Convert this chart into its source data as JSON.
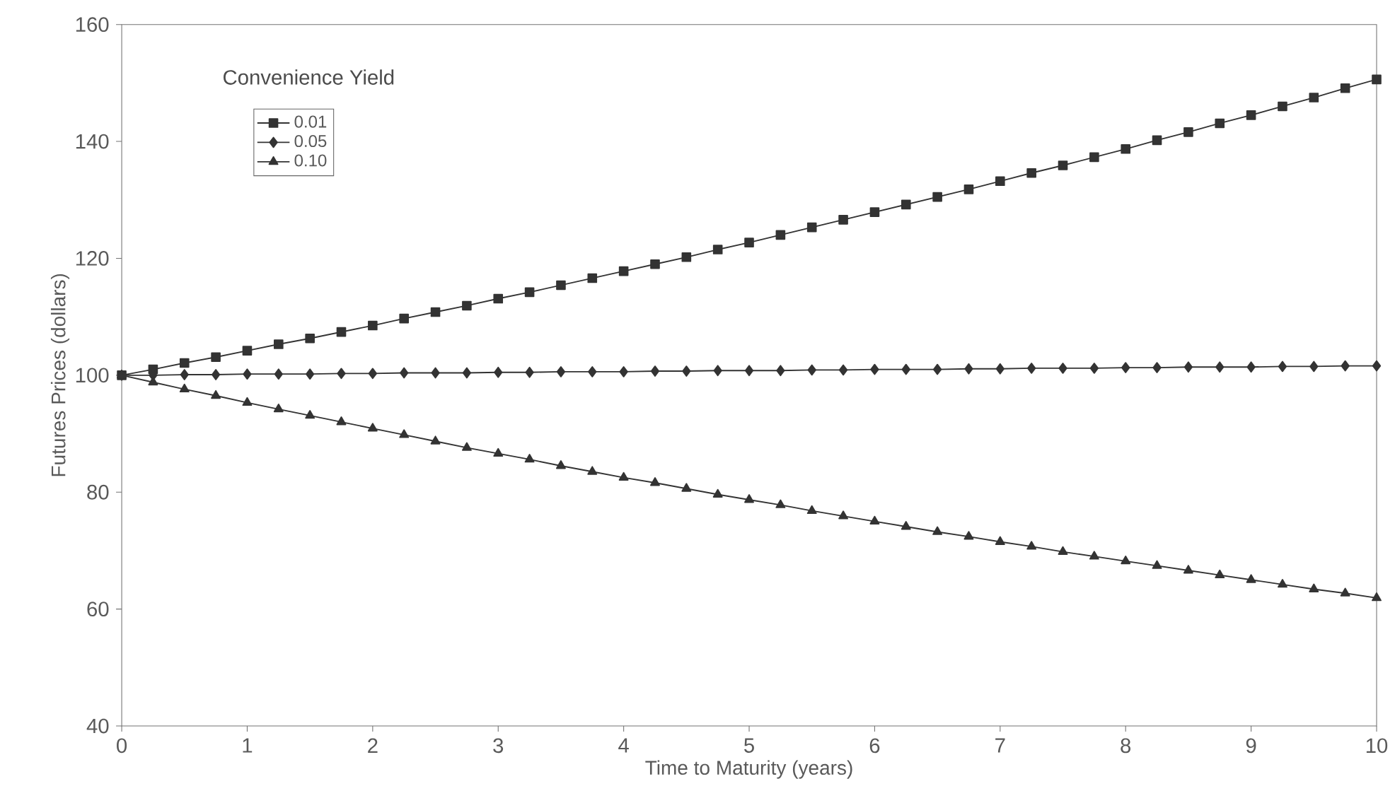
{
  "chart_data": {
    "type": "line",
    "xlabel": "Time to Maturity (years)",
    "ylabel": "Futures Prices (dollars)",
    "legend_title": "Convenience Yield",
    "x": [
      0,
      0.25,
      0.5,
      0.75,
      1,
      1.25,
      1.5,
      1.75,
      2,
      2.25,
      2.5,
      2.75,
      3,
      3.25,
      3.5,
      3.75,
      4,
      4.25,
      4.5,
      4.75,
      5,
      5.25,
      5.5,
      5.75,
      6,
      6.25,
      6.5,
      6.75,
      7,
      7.25,
      7.5,
      7.75,
      8,
      8.25,
      8.5,
      8.75,
      9,
      9.25,
      9.5,
      9.75,
      10
    ],
    "series": [
      {
        "name": "0.01",
        "color": "#333333",
        "marker": "square",
        "values": [
          100,
          101.0,
          102.1,
          103.1,
          104.2,
          105.3,
          106.3,
          107.4,
          108.5,
          109.7,
          110.8,
          111.9,
          113.1,
          114.2,
          115.4,
          116.6,
          117.8,
          119.0,
          120.2,
          121.5,
          122.7,
          124.0,
          125.3,
          126.6,
          127.9,
          129.2,
          130.5,
          131.8,
          133.2,
          134.6,
          135.9,
          137.3,
          138.7,
          140.2,
          141.6,
          143.1,
          144.5,
          146.0,
          147.5,
          149.1,
          150.6
        ]
      },
      {
        "name": "0.05",
        "color": "#333333",
        "marker": "diamond",
        "values": [
          100.0,
          100.0,
          100.1,
          100.1,
          100.2,
          100.2,
          100.2,
          100.3,
          100.3,
          100.4,
          100.4,
          100.4,
          100.5,
          100.5,
          100.6,
          100.6,
          100.6,
          100.7,
          100.7,
          100.8,
          100.8,
          100.8,
          100.9,
          100.9,
          101.0,
          101.0,
          101.0,
          101.1,
          101.1,
          101.2,
          101.2,
          101.2,
          101.3,
          101.3,
          101.4,
          101.4,
          101.4,
          101.5,
          101.5,
          101.6,
          101.6
        ]
      },
      {
        "name": "0.10",
        "color": "#333333",
        "marker": "triangle",
        "values": [
          100,
          98.8,
          97.6,
          96.5,
          95.3,
          94.2,
          93.1,
          92.0,
          90.9,
          89.8,
          88.7,
          87.6,
          86.6,
          85.6,
          84.5,
          83.5,
          82.5,
          81.6,
          80.6,
          79.6,
          78.7,
          77.8,
          76.8,
          75.9,
          75.0,
          74.1,
          73.2,
          72.4,
          71.5,
          70.7,
          69.8,
          69.0,
          68.2,
          67.4,
          66.6,
          65.8,
          65.0,
          64.2,
          63.4,
          62.7,
          61.9
        ]
      }
    ],
    "xlim": [
      0,
      10
    ],
    "ylim": [
      40,
      160
    ],
    "xticks": [
      0,
      1,
      2,
      3,
      4,
      5,
      6,
      7,
      8,
      9,
      10
    ],
    "yticks": [
      40,
      60,
      80,
      100,
      120,
      140,
      160
    ],
    "grid": false,
    "legend": "top left",
    "line_style": "solid"
  }
}
